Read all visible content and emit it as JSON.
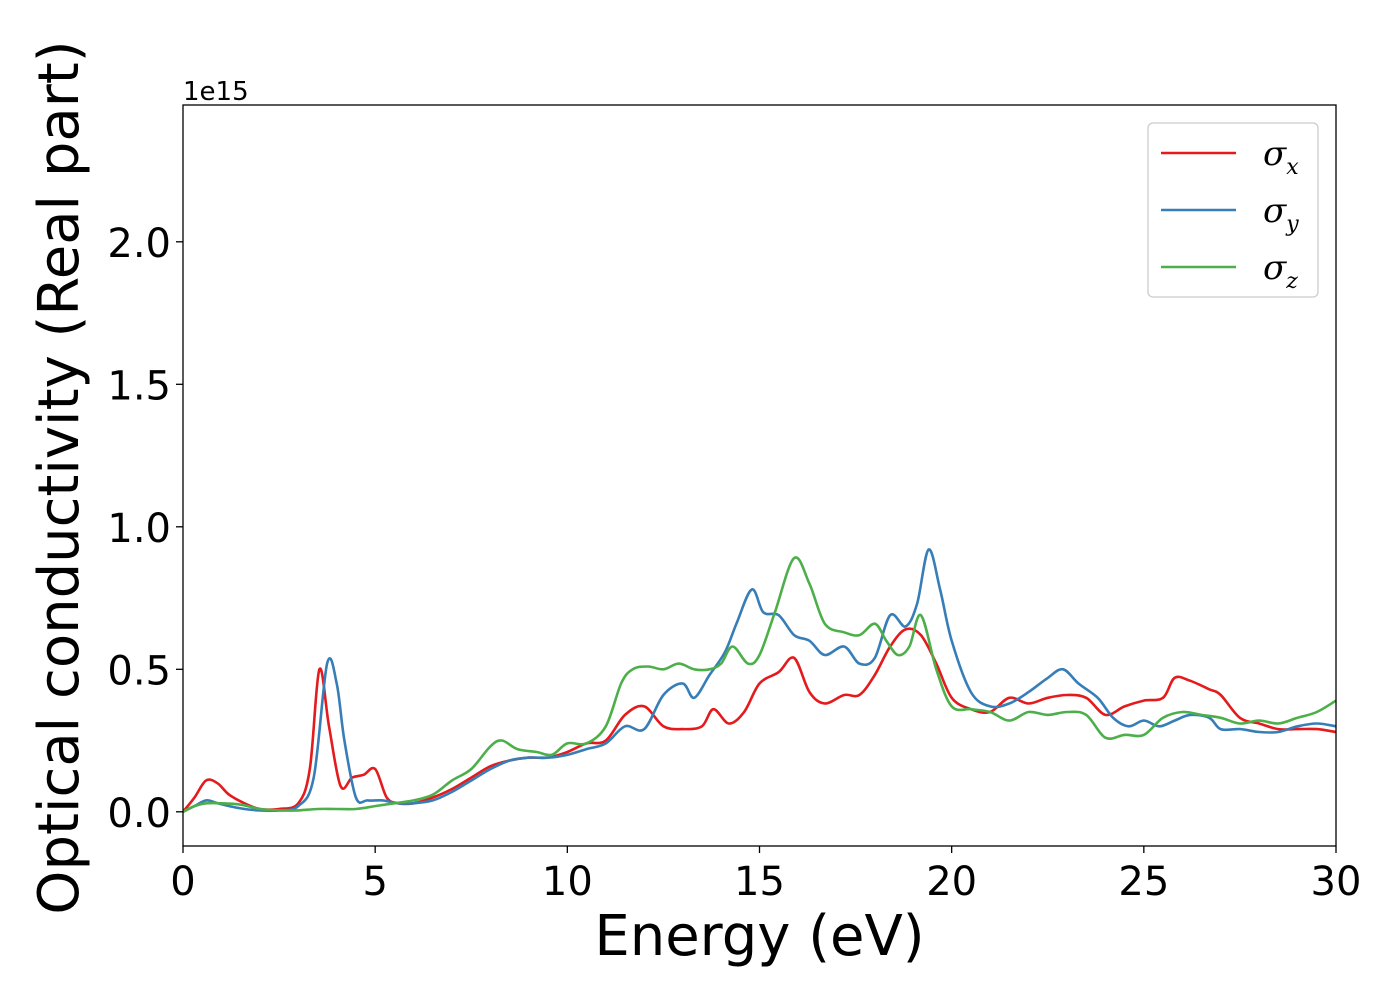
{
  "chart_data": {
    "type": "line",
    "title": "",
    "xlabel": "Energy (eV)",
    "ylabel": "Optical conductivity (Real part)",
    "y_offset_label": "1e15",
    "xlim": [
      0,
      30
    ],
    "ylim": [
      -0.12,
      2.48
    ],
    "x_ticks": [
      0,
      5,
      10,
      15,
      20,
      25,
      30
    ],
    "x_tick_labels": [
      "0",
      "5",
      "10",
      "15",
      "20",
      "25",
      "30"
    ],
    "y_ticks": [
      0.0,
      0.5,
      1.0,
      1.5,
      2.0
    ],
    "y_tick_labels": [
      "0.0",
      "0.5",
      "1.0",
      "1.5",
      "2.0"
    ],
    "grid": false,
    "legend_position": "top-right",
    "series": [
      {
        "name": "σx",
        "symbol": "σ",
        "subscript": "x",
        "color": "#e41a1c",
        "x": [
          0,
          0.3,
          0.6,
          0.9,
          1.2,
          1.6,
          2.0,
          2.5,
          3.0,
          3.3,
          3.55,
          3.8,
          4.1,
          4.4,
          4.7,
          5.0,
          5.3,
          5.6,
          6.0,
          6.5,
          7.0,
          7.5,
          8.0,
          8.5,
          9.0,
          9.5,
          10.0,
          10.5,
          11.0,
          11.5,
          12.0,
          12.5,
          13.0,
          13.5,
          13.8,
          14.2,
          14.6,
          15.0,
          15.5,
          15.9,
          16.3,
          16.7,
          17.2,
          17.6,
          18.0,
          18.4,
          18.8,
          19.2,
          19.6,
          20.0,
          20.5,
          21.0,
          21.5,
          22.0,
          22.5,
          23.0,
          23.5,
          24.0,
          24.5,
          25.0,
          25.5,
          25.8,
          26.2,
          26.7,
          27.0,
          27.5,
          28.0,
          28.5,
          29.0,
          29.5,
          30.0
        ],
        "y": [
          0.0,
          0.05,
          0.11,
          0.1,
          0.06,
          0.03,
          0.01,
          0.01,
          0.03,
          0.15,
          0.5,
          0.3,
          0.09,
          0.12,
          0.13,
          0.15,
          0.05,
          0.03,
          0.03,
          0.05,
          0.08,
          0.12,
          0.16,
          0.18,
          0.19,
          0.19,
          0.21,
          0.24,
          0.25,
          0.34,
          0.37,
          0.3,
          0.29,
          0.3,
          0.36,
          0.31,
          0.35,
          0.45,
          0.49,
          0.54,
          0.42,
          0.38,
          0.41,
          0.41,
          0.48,
          0.58,
          0.64,
          0.62,
          0.52,
          0.4,
          0.36,
          0.35,
          0.4,
          0.38,
          0.4,
          0.41,
          0.4,
          0.34,
          0.37,
          0.39,
          0.4,
          0.47,
          0.46,
          0.43,
          0.41,
          0.33,
          0.31,
          0.29,
          0.29,
          0.29,
          0.28
        ]
      },
      {
        "name": "σy",
        "symbol": "σ",
        "subscript": "y",
        "color": "#377eb8",
        "x": [
          0,
          0.3,
          0.6,
          0.9,
          1.2,
          1.6,
          2.0,
          2.5,
          3.0,
          3.4,
          3.75,
          4.0,
          4.2,
          4.5,
          4.8,
          5.2,
          5.6,
          6.0,
          6.5,
          7.0,
          7.5,
          8.0,
          8.5,
          9.0,
          9.5,
          10.0,
          10.5,
          11.0,
          11.5,
          12.0,
          12.5,
          13.0,
          13.3,
          13.7,
          14.1,
          14.4,
          14.8,
          15.1,
          15.5,
          15.9,
          16.3,
          16.7,
          17.2,
          17.6,
          18.0,
          18.4,
          18.8,
          19.1,
          19.4,
          19.7,
          20.0,
          20.5,
          21.0,
          21.5,
          22.0,
          22.5,
          22.9,
          23.3,
          23.8,
          24.2,
          24.6,
          25.0,
          25.4,
          25.8,
          26.2,
          26.7,
          27.0,
          27.5,
          28.0,
          28.5,
          29.0,
          29.5,
          30.0
        ],
        "y": [
          0.0,
          0.02,
          0.04,
          0.03,
          0.02,
          0.01,
          0.005,
          0.005,
          0.02,
          0.12,
          0.52,
          0.45,
          0.25,
          0.05,
          0.04,
          0.04,
          0.03,
          0.03,
          0.04,
          0.07,
          0.11,
          0.15,
          0.18,
          0.19,
          0.19,
          0.2,
          0.22,
          0.24,
          0.3,
          0.29,
          0.41,
          0.45,
          0.4,
          0.48,
          0.56,
          0.66,
          0.78,
          0.7,
          0.69,
          0.62,
          0.6,
          0.55,
          0.58,
          0.52,
          0.54,
          0.69,
          0.65,
          0.73,
          0.92,
          0.78,
          0.6,
          0.42,
          0.37,
          0.38,
          0.42,
          0.47,
          0.5,
          0.45,
          0.4,
          0.33,
          0.3,
          0.32,
          0.3,
          0.32,
          0.34,
          0.33,
          0.29,
          0.29,
          0.28,
          0.28,
          0.3,
          0.31,
          0.3
        ]
      },
      {
        "name": "σz",
        "symbol": "σ",
        "subscript": "z",
        "color": "#4daf4a",
        "x": [
          0,
          0.3,
          0.6,
          1.0,
          1.5,
          2.0,
          2.5,
          3.0,
          3.5,
          4.0,
          4.5,
          5.0,
          5.5,
          6.0,
          6.5,
          7.0,
          7.5,
          8.0,
          8.3,
          8.7,
          9.2,
          9.6,
          10.0,
          10.5,
          11.0,
          11.4,
          11.7,
          12.1,
          12.5,
          12.9,
          13.3,
          13.7,
          14.0,
          14.3,
          14.7,
          15.0,
          15.4,
          15.9,
          16.3,
          16.7,
          17.2,
          17.6,
          18.0,
          18.3,
          18.6,
          18.9,
          19.2,
          19.6,
          20.0,
          20.5,
          21.0,
          21.5,
          22.0,
          22.5,
          23.0,
          23.5,
          24.0,
          24.5,
          25.0,
          25.5,
          26.0,
          26.5,
          27.0,
          27.5,
          28.0,
          28.5,
          29.0,
          29.5,
          30.0
        ],
        "y": [
          0.0,
          0.02,
          0.03,
          0.03,
          0.025,
          0.01,
          0.005,
          0.005,
          0.01,
          0.01,
          0.01,
          0.02,
          0.03,
          0.04,
          0.06,
          0.11,
          0.15,
          0.23,
          0.25,
          0.22,
          0.21,
          0.2,
          0.24,
          0.24,
          0.3,
          0.45,
          0.5,
          0.51,
          0.5,
          0.52,
          0.5,
          0.5,
          0.52,
          0.58,
          0.52,
          0.55,
          0.7,
          0.89,
          0.8,
          0.66,
          0.63,
          0.62,
          0.66,
          0.6,
          0.55,
          0.58,
          0.69,
          0.5,
          0.37,
          0.36,
          0.35,
          0.32,
          0.35,
          0.34,
          0.35,
          0.34,
          0.26,
          0.27,
          0.27,
          0.33,
          0.35,
          0.34,
          0.33,
          0.31,
          0.32,
          0.31,
          0.33,
          0.35,
          0.39
        ]
      }
    ]
  }
}
